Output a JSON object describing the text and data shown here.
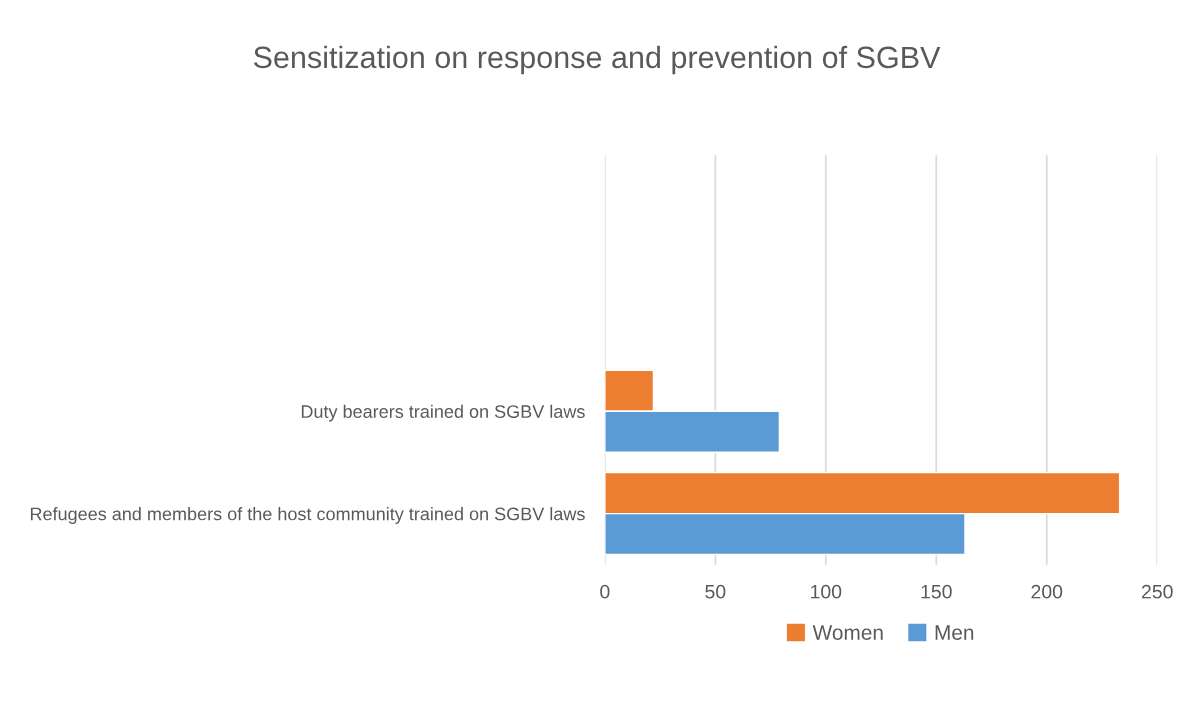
{
  "chart_data": {
    "type": "bar",
    "orientation": "horizontal",
    "title": "Sensitization on response and prevention of SGBV",
    "categories": [
      null,
      null,
      "Duty bearers trained on SGBV laws",
      "Refugees and members of the host community trained on SGBV laws"
    ],
    "series": [
      {
        "name": "Women",
        "color": "#ed7d31",
        "values": [
          null,
          null,
          22,
          233
        ]
      },
      {
        "name": "Men",
        "color": "#5b9bd5",
        "values": [
          null,
          null,
          79,
          163
        ]
      }
    ],
    "xlim": [
      0,
      250
    ],
    "xticks": [
      0,
      50,
      100,
      150,
      200,
      250
    ],
    "grid": "x",
    "legend": "bottom"
  }
}
